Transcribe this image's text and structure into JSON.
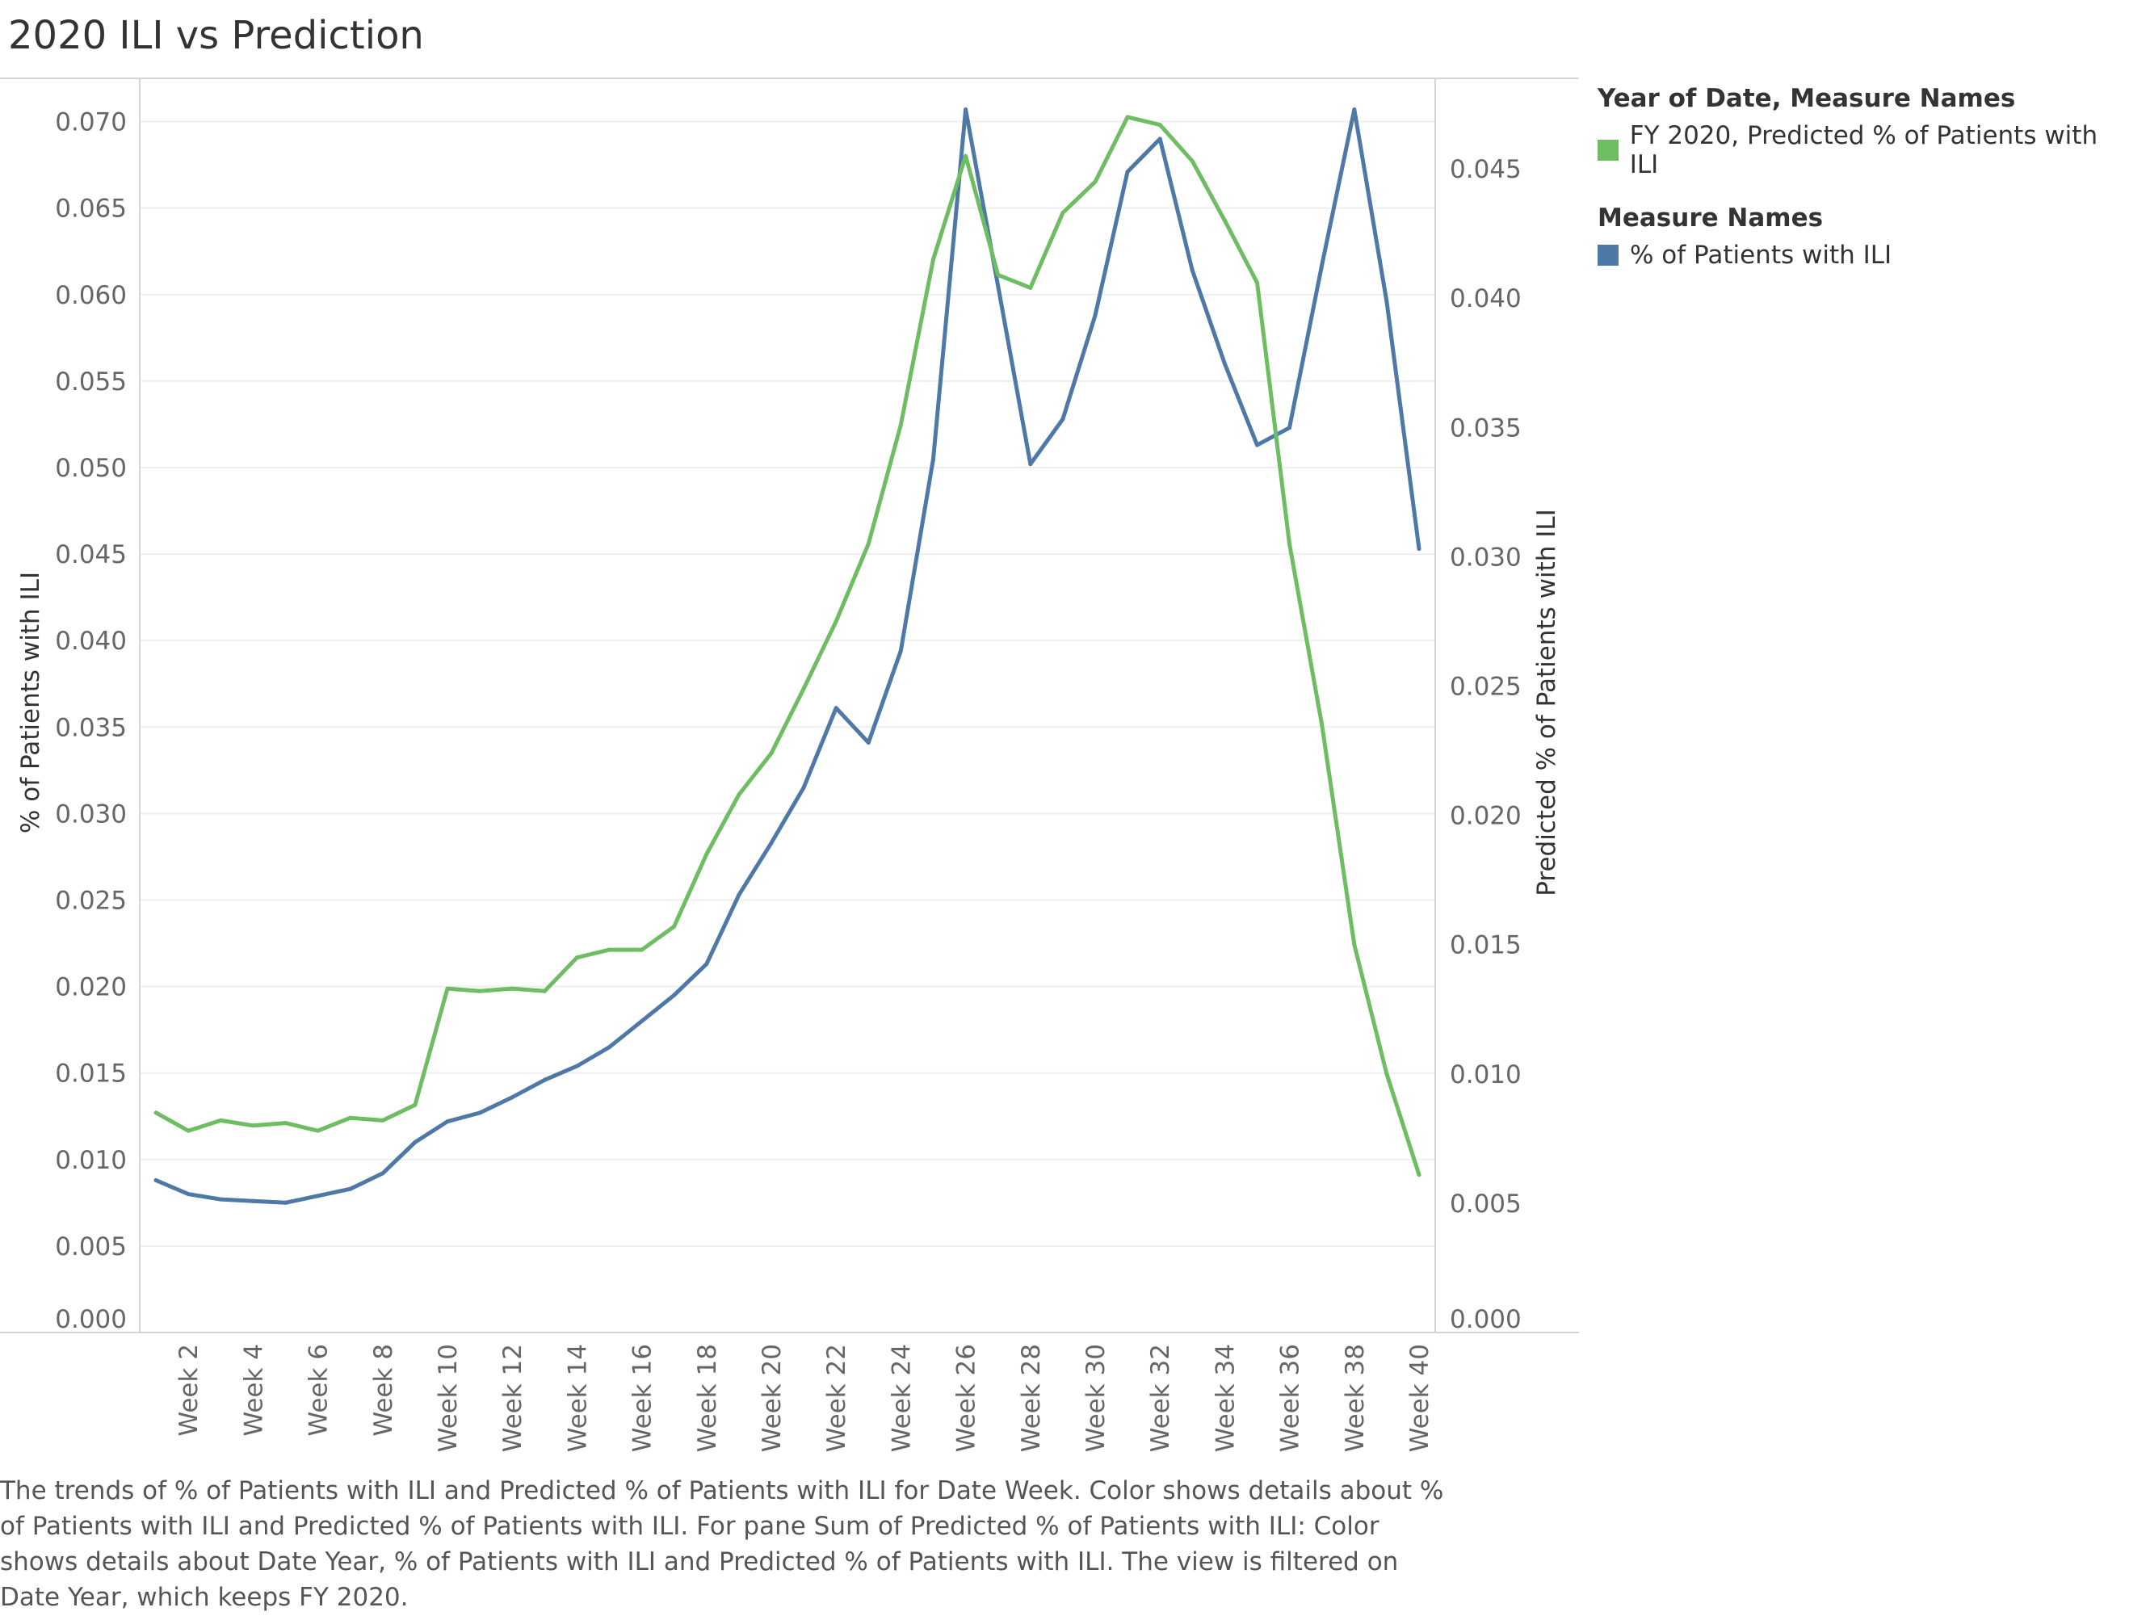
{
  "title": "2020 ILI vs Prediction",
  "legend": {
    "group1_title": "Year of Date, Measure Names",
    "group1_item": "FY 2020, Predicted % of Patients with ILI",
    "group2_title": "Measure Names",
    "group2_item": "% of Patients with ILI"
  },
  "caption": "The trends of % of Patients with ILI and Predicted % of Patients with ILI for Date Week.  Color shows details about % of Patients with ILI and Predicted % of Patients with ILI.  For pane Sum of Predicted % of Patients with ILI:  Color shows details about Date Year, % of Patients with ILI and Predicted % of Patients with ILI. The view is filtered on Date Year, which keeps FY 2020.",
  "colors": {
    "actual": "#4e79a7",
    "predicted": "#6ebd62"
  },
  "chart_data": {
    "type": "line",
    "x": [
      "Week 1",
      "Week 2",
      "Week 3",
      "Week 4",
      "Week 5",
      "Week 6",
      "Week 7",
      "Week 8",
      "Week 9",
      "Week 10",
      "Week 11",
      "Week 12",
      "Week 13",
      "Week 14",
      "Week 15",
      "Week 16",
      "Week 17",
      "Week 18",
      "Week 19",
      "Week 20",
      "Week 21",
      "Week 22",
      "Week 23",
      "Week 24",
      "Week 25",
      "Week 26",
      "Week 27",
      "Week 28",
      "Week 29",
      "Week 30",
      "Week 31",
      "Week 32",
      "Week 33",
      "Week 34",
      "Week 35",
      "Week 36",
      "Week 37",
      "Week 38",
      "Week 39",
      "Week 40"
    ],
    "x_tick_labels": [
      "Week 2",
      "Week 4",
      "Week 6",
      "Week 8",
      "Week 10",
      "Week 12",
      "Week 14",
      "Week 16",
      "Week 18",
      "Week 20",
      "Week 22",
      "Week 24",
      "Week 26",
      "Week 28",
      "Week 30",
      "Week 32",
      "Week 34",
      "Week 36",
      "Week 38",
      "Week 40"
    ],
    "ylabel_left": "% of Patients with ILI",
    "ylabel_right": "Predicted % of Patients with ILI",
    "ylim_left": [
      0,
      0.0725
    ],
    "ylim_right": [
      0,
      0.0485
    ],
    "yticks_left": [
      "0.000",
      "0.005",
      "0.010",
      "0.015",
      "0.020",
      "0.025",
      "0.030",
      "0.035",
      "0.040",
      "0.045",
      "0.050",
      "0.055",
      "0.060",
      "0.065",
      "0.070"
    ],
    "yticks_right": [
      "0.000",
      "0.005",
      "0.010",
      "0.015",
      "0.020",
      "0.025",
      "0.030",
      "0.035",
      "0.040",
      "0.045"
    ],
    "series": [
      {
        "name": "% of Patients with ILI",
        "axis": "left",
        "color": "#4e79a7",
        "values": [
          0.0088,
          0.008,
          0.0077,
          0.0076,
          0.0075,
          0.0079,
          0.0083,
          0.0092,
          0.011,
          0.0122,
          0.0127,
          0.0136,
          0.0146,
          0.0154,
          0.0165,
          0.018,
          0.0195,
          0.0213,
          0.0253,
          0.0283,
          0.0315,
          0.0361,
          0.0341,
          0.0394,
          0.0505,
          0.0707,
          0.0605,
          0.0502,
          0.0528,
          0.0588,
          0.0671,
          0.069,
          0.0614,
          0.056,
          0.0513,
          0.0523,
          0.0617,
          0.0707,
          0.0596,
          0.0453
        ]
      },
      {
        "name": "FY 2020, Predicted % of Patients with ILI",
        "axis": "right",
        "color": "#6ebd62",
        "values": [
          0.0085,
          0.0078,
          0.0082,
          0.008,
          0.0081,
          0.0078,
          0.0083,
          0.0082,
          0.0088,
          0.0133,
          0.0132,
          0.0133,
          0.0132,
          0.0145,
          0.0148,
          0.0148,
          0.0157,
          0.0185,
          0.0208,
          0.0224,
          0.0249,
          0.0275,
          0.0305,
          0.0351,
          0.0415,
          0.0455,
          0.0409,
          0.0404,
          0.0433,
          0.0445,
          0.047,
          0.0467,
          0.0453,
          0.043,
          0.0406,
          0.0305,
          0.0235,
          0.015,
          0.01,
          0.0061
        ]
      }
    ]
  }
}
